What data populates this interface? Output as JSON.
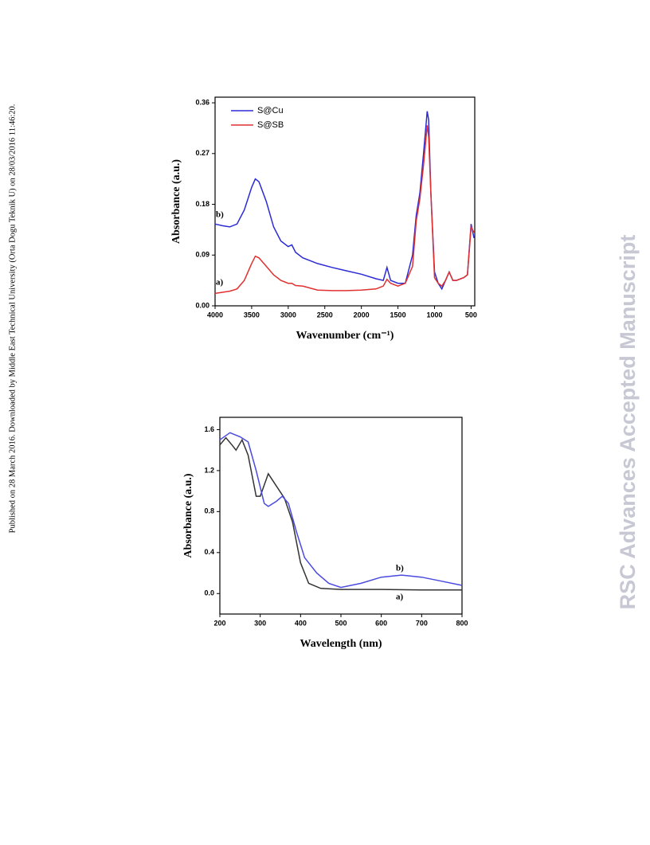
{
  "side_note": "Published on 28 March 2016. Downloaded by Middle East Technical University (Orta Dogu Teknik U) on 28/03/2016 11:46:20.",
  "watermark": "RSC Advances Accepted Manuscript",
  "chart_data": [
    {
      "type": "line",
      "x_label": "Wavenumber (cm⁻¹)",
      "y_label": "Absorbance (a.u.)",
      "xlim": [
        4000,
        450
      ],
      "ylim": [
        0,
        0.37
      ],
      "xticks": [
        4000,
        3500,
        3000,
        2500,
        2000,
        1500,
        1000,
        500
      ],
      "yticks": [
        {
          "value": 0,
          "label": "0.00"
        },
        0.09,
        0.18,
        0.27,
        0.36
      ],
      "legend": "upper left",
      "annotations": [
        "b)",
        "a)"
      ],
      "series": [
        {
          "name": "S@Cu",
          "color": "#2b2bd6",
          "x": [
            4000,
            3900,
            3800,
            3700,
            3600,
            3500,
            3450,
            3400,
            3300,
            3200,
            3100,
            3000,
            2950,
            2900,
            2800,
            2600,
            2400,
            2200,
            2000,
            1800,
            1700,
            1650,
            1600,
            1500,
            1400,
            1300,
            1250,
            1200,
            1150,
            1100,
            1080,
            1050,
            1000,
            950,
            900,
            850,
            800,
            750,
            700,
            600,
            550,
            500,
            460
          ],
          "values": [
            0.145,
            0.142,
            0.14,
            0.145,
            0.17,
            0.21,
            0.225,
            0.22,
            0.185,
            0.14,
            0.115,
            0.105,
            0.108,
            0.095,
            0.085,
            0.075,
            0.068,
            0.062,
            0.056,
            0.048,
            0.045,
            0.068,
            0.045,
            0.04,
            0.04,
            0.09,
            0.16,
            0.2,
            0.27,
            0.345,
            0.33,
            0.2,
            0.06,
            0.04,
            0.03,
            0.045,
            0.06,
            0.045,
            0.045,
            0.05,
            0.055,
            0.145,
            0.12
          ]
        },
        {
          "name": "S@SB",
          "color": "#e03030",
          "x": [
            4000,
            3800,
            3700,
            3600,
            3500,
            3450,
            3400,
            3300,
            3200,
            3100,
            3000,
            2950,
            2900,
            2800,
            2600,
            2400,
            2200,
            2000,
            1800,
            1700,
            1650,
            1600,
            1500,
            1400,
            1300,
            1250,
            1200,
            1150,
            1100,
            1080,
            1050,
            1000,
            950,
            900,
            850,
            800,
            750,
            700,
            600,
            550,
            500,
            460
          ],
          "values": [
            0.022,
            0.026,
            0.03,
            0.045,
            0.075,
            0.088,
            0.085,
            0.07,
            0.055,
            0.045,
            0.04,
            0.04,
            0.036,
            0.035,
            0.028,
            0.027,
            0.027,
            0.028,
            0.03,
            0.035,
            0.047,
            0.04,
            0.035,
            0.04,
            0.07,
            0.15,
            0.19,
            0.25,
            0.32,
            0.3,
            0.2,
            0.05,
            0.04,
            0.035,
            0.045,
            0.06,
            0.045,
            0.045,
            0.05,
            0.055,
            0.14,
            0.13
          ]
        }
      ]
    },
    {
      "type": "line",
      "x_label": "Wavelength (nm)",
      "y_label": "Absorbance (a.u.)",
      "xlim": [
        200,
        800
      ],
      "ylim": [
        -0.2,
        1.72
      ],
      "xticks": [
        200,
        300,
        400,
        500,
        600,
        700,
        800
      ],
      "yticks": [
        {
          "value": 0,
          "label": "0.0"
        },
        0.4,
        0.8,
        1.2,
        1.6
      ],
      "series": [
        {
          "name": "a)",
          "color": "#333333",
          "x": [
            200,
            215,
            230,
            240,
            255,
            270,
            290,
            300,
            320,
            340,
            360,
            380,
            400,
            420,
            450,
            500,
            600,
            700,
            800
          ],
          "values": [
            1.45,
            1.52,
            1.45,
            1.4,
            1.5,
            1.35,
            0.95,
            0.95,
            1.17,
            1.05,
            0.93,
            0.7,
            0.3,
            0.1,
            0.05,
            0.04,
            0.04,
            0.035,
            0.035
          ]
        },
        {
          "name": "b)",
          "color": "#4a4ae0",
          "x": [
            200,
            225,
            250,
            270,
            290,
            310,
            320,
            340,
            355,
            370,
            390,
            410,
            440,
            470,
            500,
            550,
            600,
            650,
            700,
            750,
            800
          ],
          "values": [
            1.5,
            1.57,
            1.53,
            1.48,
            1.2,
            0.88,
            0.85,
            0.9,
            0.95,
            0.88,
            0.6,
            0.35,
            0.2,
            0.1,
            0.06,
            0.1,
            0.16,
            0.18,
            0.16,
            0.12,
            0.08
          ]
        }
      ]
    }
  ]
}
